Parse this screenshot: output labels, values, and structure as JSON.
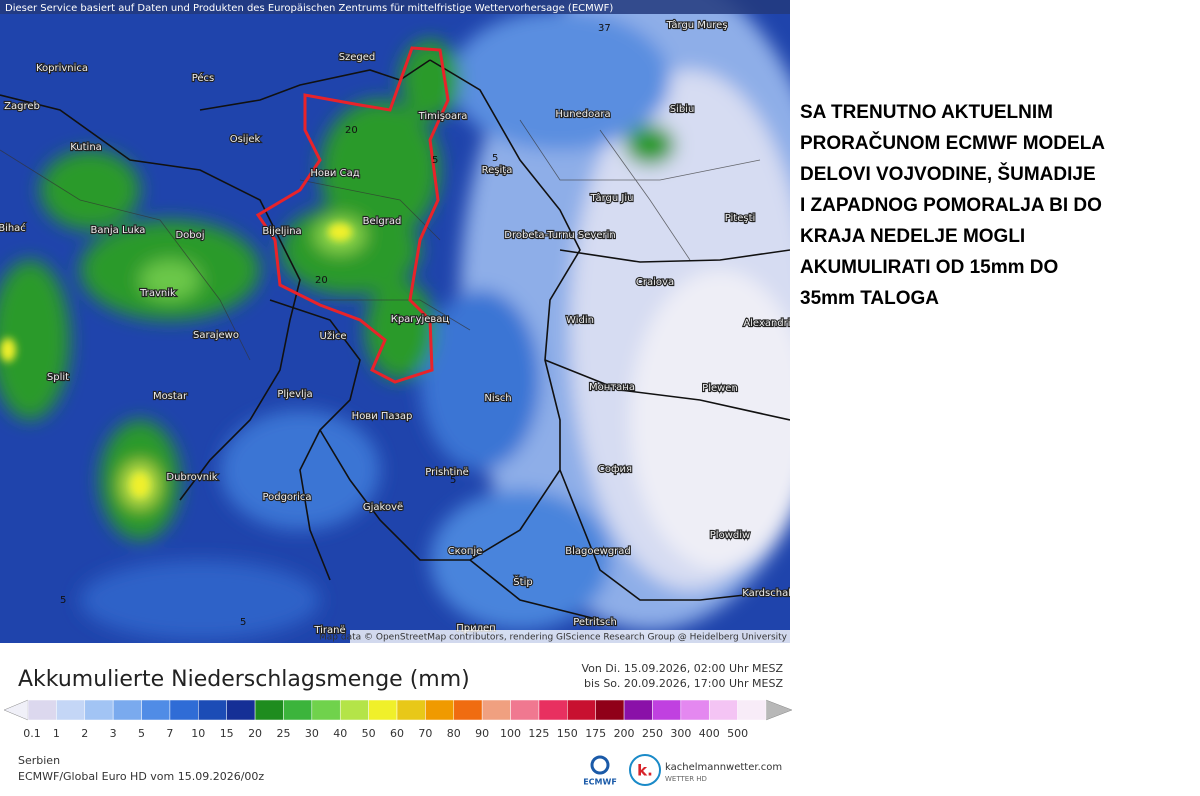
{
  "header": {
    "notice": "Dieser Service basiert auf Daten und Produkten des Europäischen Zentrums für mittelfristige Wettervorhersage (ECMWF)",
    "attribution": "Map data © OpenStreetMap contributors, rendering GIScience Research Group @ Heidelberg University"
  },
  "map": {
    "cities": [
      "Târgu Mureş",
      "Koprivnica",
      "Pécs",
      "Szeged",
      "Zagreb",
      "Osijek",
      "Kutina",
      "Timişoara",
      "Hunedoara",
      "Sibiu",
      "Reşiţa",
      "Нови Сад",
      "Târgu Jiu",
      "Piteşti",
      "Bihać",
      "Banja Luka",
      "Doboj",
      "Bijeljina",
      "Belgrad",
      "Drobeta-Turnu Severin",
      "Craiova",
      "Travnik",
      "Крагујевац",
      "Widin",
      "Alexandria",
      "Sarajewo",
      "Užice",
      "Split",
      "Монтана",
      "Plewen",
      "Mostar",
      "Pljevlja",
      "Nisch",
      "Нови Пазар",
      "Prishtinë",
      "София",
      "Dubrovnik",
      "Podgorica",
      "Gjakovë",
      "Plowdiw",
      "Скопје",
      "Blagoewgrad",
      "Štip",
      "Kardschali",
      "Tiranë",
      "Petritsch",
      "Прилеп"
    ],
    "contour_labels": [
      "37",
      "20",
      "20",
      "5",
      "5",
      "5",
      "5",
      "5"
    ]
  },
  "legend": {
    "title": "Akkumulierte Niederschlagsmenge (mm)",
    "period_from": "Von Di. 15.09.2026, 02:00 Uhr MESZ",
    "period_to": "bis So. 20.09.2026, 17:00 Uhr MESZ",
    "items": [
      {
        "value": 0.1,
        "color": "#dcd8ee"
      },
      {
        "value": 1,
        "color": "#c4d6f6"
      },
      {
        "value": 2,
        "color": "#a2c4f4"
      },
      {
        "value": 3,
        "color": "#7aaaee"
      },
      {
        "value": 5,
        "color": "#508ce6"
      },
      {
        "value": 7,
        "color": "#2f6cd6"
      },
      {
        "value": 10,
        "color": "#1c4cb6"
      },
      {
        "value": 15,
        "color": "#152f96"
      },
      {
        "value": 20,
        "color": "#1e8c1e"
      },
      {
        "value": 25,
        "color": "#3cb43c"
      },
      {
        "value": 30,
        "color": "#70d24c"
      },
      {
        "value": 40,
        "color": "#b4e448"
      },
      {
        "value": 50,
        "color": "#f0f02a"
      },
      {
        "value": 60,
        "color": "#e8c818"
      },
      {
        "value": 70,
        "color": "#f09a00"
      },
      {
        "value": 80,
        "color": "#f06c10"
      },
      {
        "value": 90,
        "color": "#f0a080"
      },
      {
        "value": 100,
        "color": "#f07890"
      },
      {
        "value": 125,
        "color": "#e83060"
      },
      {
        "value": 150,
        "color": "#c81030"
      },
      {
        "value": 175,
        "color": "#900018"
      },
      {
        "value": 200,
        "color": "#8a10a8"
      },
      {
        "value": 250,
        "color": "#c040e0"
      },
      {
        "value": 300,
        "color": "#e488f0"
      },
      {
        "value": 400,
        "color": "#f4c4f4"
      },
      {
        "value": 500,
        "color": "#f8ecf8"
      }
    ]
  },
  "footer": {
    "region": "Serbien",
    "run": "ECMWF/Global Euro HD vom  15.09.2026/00z",
    "logo_ecmwf": "ECMWF",
    "logo_k": "k.",
    "site": "kachelmannwetter.com",
    "site_sub": "WETTER HD"
  },
  "caption": {
    "lines": [
      "SA TRENUTNO AKTUELNIM",
      "PRORAČUNOM ECMWF MODELA",
      "DELOVI VOJVODINE, ŠUMADIJE",
      "I ZAPADNOG POMORALJA BI DO",
      "KRAJA NEDELJE MOGLI",
      "AKUMULIRATI OD 15mm DO",
      "35mm TALOGA"
    ]
  }
}
